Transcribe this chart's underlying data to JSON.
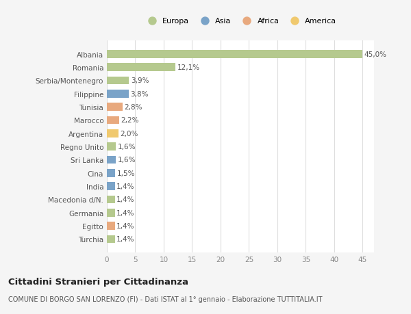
{
  "categories": [
    "Turchia",
    "Egitto",
    "Germania",
    "Macedonia d/N.",
    "India",
    "Cina",
    "Sri Lanka",
    "Regno Unito",
    "Argentina",
    "Marocco",
    "Tunisia",
    "Filippine",
    "Serbia/Montenegro",
    "Romania",
    "Albania"
  ],
  "values": [
    1.4,
    1.4,
    1.4,
    1.4,
    1.4,
    1.5,
    1.6,
    1.6,
    2.0,
    2.2,
    2.8,
    3.8,
    3.9,
    12.1,
    45.0
  ],
  "colors": [
    "#b5c98e",
    "#e8a97e",
    "#b5c98e",
    "#b5c98e",
    "#7aa3c8",
    "#7aa3c8",
    "#7aa3c8",
    "#b5c98e",
    "#f0c96e",
    "#e8a97e",
    "#e8a97e",
    "#7aa3c8",
    "#b5c98e",
    "#b5c98e",
    "#b5c98e"
  ],
  "labels": [
    "1,4%",
    "1,4%",
    "1,4%",
    "1,4%",
    "1,4%",
    "1,5%",
    "1,6%",
    "1,6%",
    "2,0%",
    "2,2%",
    "2,8%",
    "3,8%",
    "3,9%",
    "12,1%",
    "45,0%"
  ],
  "legend": [
    {
      "label": "Europa",
      "color": "#b5c98e"
    },
    {
      "label": "Asia",
      "color": "#7aa3c8"
    },
    {
      "label": "Africa",
      "color": "#e8a97e"
    },
    {
      "label": "America",
      "color": "#f0c96e"
    }
  ],
  "title": "Cittadini Stranieri per Cittadinanza",
  "subtitle": "COMUNE DI BORGO SAN LORENZO (FI) - Dati ISTAT al 1° gennaio - Elaborazione TUTTITALIA.IT",
  "xlim": [
    0,
    47
  ],
  "xticks": [
    0,
    5,
    10,
    15,
    20,
    25,
    30,
    35,
    40,
    45
  ],
  "background_color": "#f5f5f5",
  "bar_background": "#ffffff",
  "grid_color": "#dddddd",
  "title_fontsize": 9.5,
  "subtitle_fontsize": 7,
  "label_fontsize": 7.5,
  "tick_fontsize": 7.5,
  "legend_fontsize": 8
}
